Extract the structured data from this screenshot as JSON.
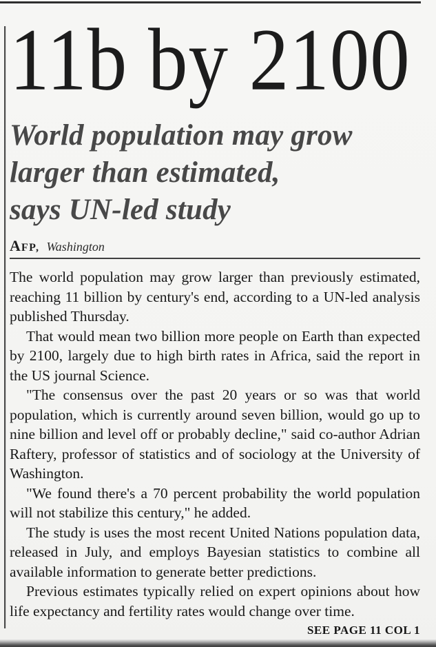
{
  "article": {
    "headline": "11b by 2100",
    "subheadline_lines": [
      "World population may grow",
      "larger than estimated,",
      "says UN-led study"
    ],
    "byline": {
      "agency": "AFP,",
      "location": "Washington"
    },
    "paragraphs": [
      "The world population may grow larger than previously estimated, reaching 11 billion by century's end, according to a UN-led analysis published Thursday.",
      "That would mean two billion more people on Earth than expected by 2100, largely due to high birth rates in Africa, said the report in the US journal Science.",
      "\"The consensus over the past 20 years or so was that world population, which is currently around seven billion, would go up to nine billion and level off or probably decline,\" said co-author Adrian Raftery, professor of statistics and of sociology at the University of Washington.",
      "\"We found there's a 70 percent probability the world population will not stabilize this century,\" he added.",
      "The study is uses the most recent United Nations population data, released in July, and employs Bayesian statistics to combine all available information to generate better predictions.",
      "Previous estimates typically relied on expert opinions about how life expectancy and fertility rates would change over time."
    ],
    "continuation": "SEE PAGE 11 COL 1"
  },
  "colors": {
    "paper": "#f5f5f3",
    "headline_ink": "#1c1c1c",
    "deck_ink": "#484848",
    "body_ink": "#191919",
    "rule": "#3f3f3f"
  }
}
